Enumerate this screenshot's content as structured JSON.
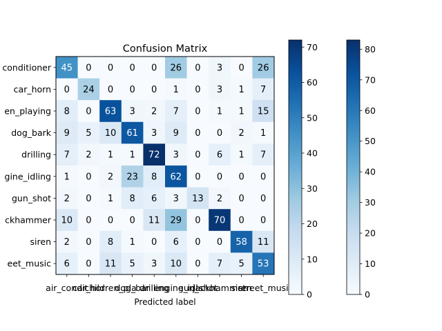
{
  "chart_data": {
    "type": "heatmap",
    "title": "Confusion Matrix",
    "xlabel": "Predicted label",
    "ylabel": "",
    "labels": [
      "air_conditioner",
      "car_horn",
      "children_playing",
      "dog_bark",
      "drilling",
      "engine_idling",
      "gun_shot",
      "jackhammer",
      "siren",
      "street_music"
    ],
    "row_tick_labels": [
      "conditioner",
      "car_horn",
      "en_playing",
      "dog_bark",
      "drilling",
      "gine_idling",
      "gun_shot",
      "ckhammer",
      "siren",
      "eet_music"
    ],
    "col_tick_labels": [
      "air_condit",
      "car_hor",
      "children_pla",
      "dog_bar",
      "drilling",
      "engine_idl",
      "gun_shot",
      "jackhammer",
      "siren",
      "street_musi"
    ],
    "matrix": [
      [
        45,
        0,
        0,
        0,
        0,
        26,
        0,
        3,
        0,
        26
      ],
      [
        0,
        24,
        0,
        0,
        0,
        1,
        0,
        3,
        1,
        7
      ],
      [
        8,
        0,
        63,
        3,
        2,
        7,
        0,
        1,
        1,
        15
      ],
      [
        9,
        5,
        10,
        61,
        3,
        9,
        0,
        0,
        2,
        1
      ],
      [
        7,
        2,
        1,
        1,
        72,
        3,
        0,
        6,
        1,
        7
      ],
      [
        1,
        0,
        2,
        23,
        8,
        62,
        0,
        0,
        0,
        0
      ],
      [
        2,
        0,
        1,
        8,
        6,
        3,
        13,
        2,
        0,
        0
      ],
      [
        10,
        0,
        0,
        0,
        11,
        29,
        0,
        70,
        0,
        0
      ],
      [
        2,
        0,
        8,
        1,
        0,
        6,
        0,
        0,
        58,
        11
      ],
      [
        6,
        0,
        11,
        5,
        3,
        10,
        0,
        7,
        5,
        53
      ]
    ],
    "colormap": "Blues",
    "color_range": [
      0,
      72
    ],
    "colorbars": [
      {
        "range": [
          0,
          72
        ],
        "ticks": [
          0,
          10,
          20,
          30,
          40,
          50,
          60,
          70
        ]
      },
      {
        "range": [
          0,
          83
        ],
        "ticks": [
          0,
          10,
          20,
          30,
          40,
          50,
          60,
          70,
          80
        ]
      }
    ]
  }
}
